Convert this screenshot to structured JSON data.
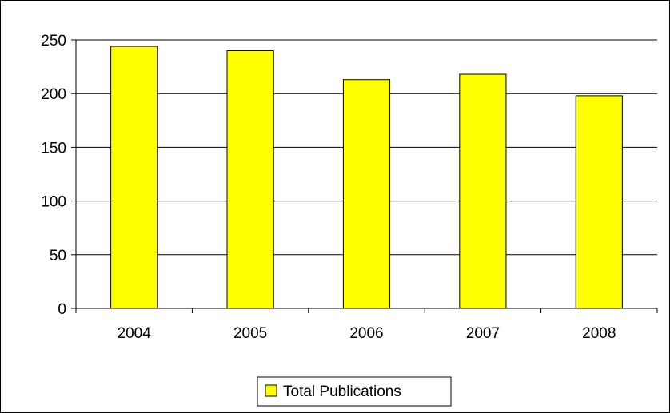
{
  "chart_data": {
    "type": "bar",
    "title": "",
    "xlabel": "",
    "ylabel": "",
    "categories": [
      "2004",
      "2005",
      "2006",
      "2007",
      "2008"
    ],
    "series": [
      {
        "name": "Total Publications",
        "values": [
          244,
          240,
          213,
          218,
          198
        ]
      }
    ],
    "ylim": [
      0,
      250
    ],
    "yticks": [
      0,
      50,
      100,
      150,
      200,
      250
    ],
    "ytick_labels": [
      "0",
      "50",
      "100",
      "150",
      "200",
      "250"
    ],
    "grid": true,
    "legend": "bottom-center",
    "colors": {
      "bar_fill": "#ffff00",
      "bar_stroke": "#000000",
      "grid": "#000000"
    }
  }
}
